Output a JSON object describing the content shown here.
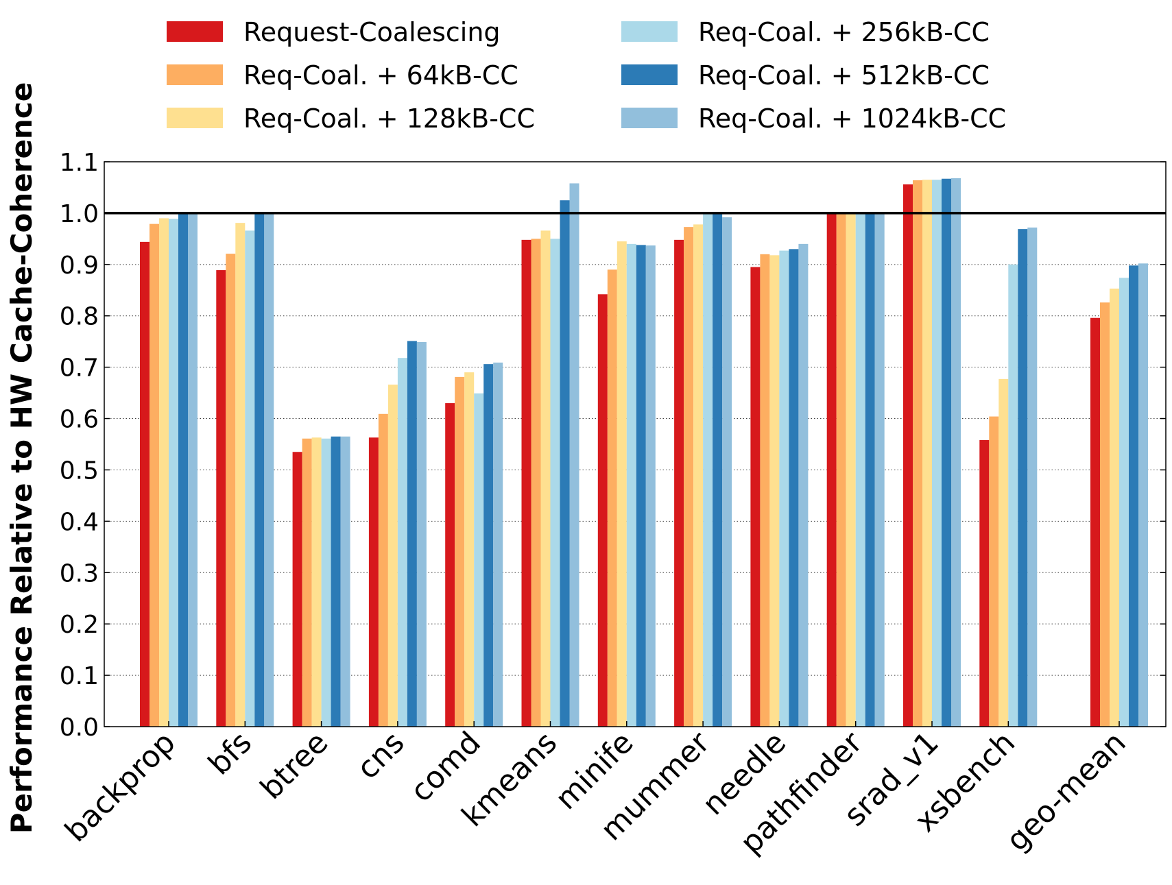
{
  "chart_data": {
    "type": "bar",
    "title": "",
    "xlabel": "",
    "ylabel": "Performance Relative to HW Cache-Coherence",
    "ylim": [
      0.0,
      1.1
    ],
    "yticks": [
      "0.0",
      "0.1",
      "0.2",
      "0.3",
      "0.4",
      "0.5",
      "0.6",
      "0.7",
      "0.8",
      "0.9",
      "1.0",
      "1.1"
    ],
    "grid": "horizontal dotted",
    "reference_line": 1.0,
    "legend_position": "top",
    "categories": [
      "backprop",
      "bfs",
      "btree",
      "cns",
      "comd",
      "kmeans",
      "minife",
      "mummer",
      "needle",
      "pathfinder",
      "srad_v1",
      "xsbench",
      "geo-mean"
    ],
    "series": [
      {
        "name": "Request-Coalescing",
        "color": "#d7191c",
        "values": [
          0.944,
          0.889,
          0.535,
          0.563,
          0.63,
          0.948,
          0.842,
          0.948,
          0.895,
          1.0,
          1.056,
          0.558,
          0.796
        ]
      },
      {
        "name": "Req-Coal. + 64kB-CC",
        "color": "#fdae61",
        "values": [
          0.979,
          0.921,
          0.561,
          0.609,
          0.681,
          0.95,
          0.89,
          0.973,
          0.92,
          1.0,
          1.064,
          0.604,
          0.826
        ]
      },
      {
        "name": "Req-Coal. + 128kB-CC",
        "color": "#fee090",
        "values": [
          0.99,
          0.981,
          0.563,
          0.666,
          0.69,
          0.966,
          0.945,
          0.978,
          0.918,
          1.0,
          1.065,
          0.677,
          0.853
        ]
      },
      {
        "name": "Req-Coal. + 256kB-CC",
        "color": "#abd9e9",
        "values": [
          0.989,
          0.966,
          0.561,
          0.718,
          0.649,
          0.95,
          0.94,
          1.0,
          0.927,
          1.0,
          1.065,
          0.9,
          0.874
        ]
      },
      {
        "name": "Req-Coal. + 512kB-CC",
        "color": "#2c7bb6",
        "values": [
          0.998,
          1.0,
          0.565,
          0.751,
          0.706,
          1.025,
          0.938,
          1.0,
          0.93,
          1.0,
          1.067,
          0.969,
          0.898
        ]
      },
      {
        "name": "Req-Coal. + 1024kB-CC",
        "color": "#92bfdc",
        "values": [
          1.0,
          1.0,
          0.565,
          0.749,
          0.709,
          1.058,
          0.937,
          0.992,
          0.94,
          1.0,
          1.068,
          0.972,
          0.902
        ]
      }
    ]
  }
}
